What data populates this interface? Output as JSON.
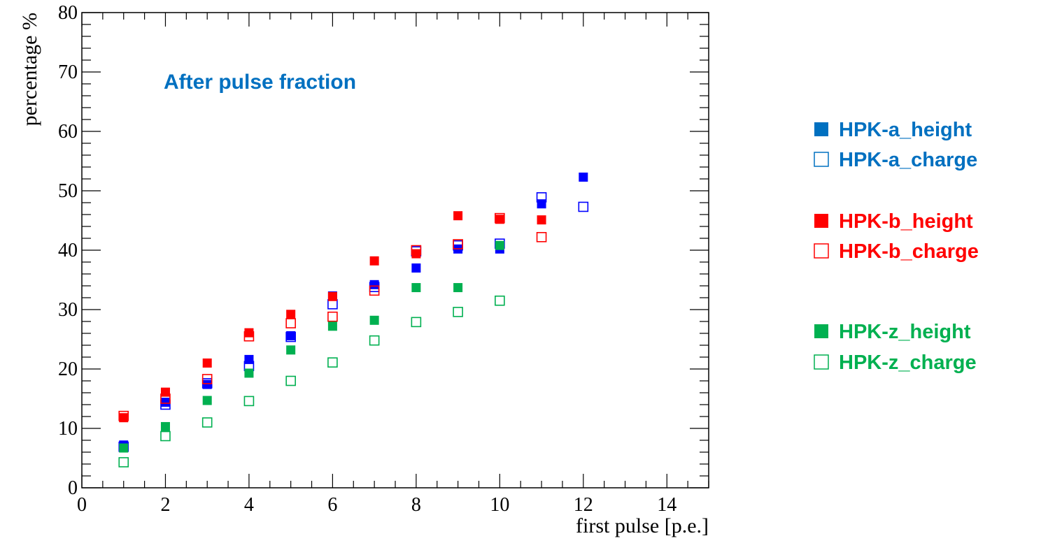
{
  "chart_data": {
    "type": "scatter",
    "title": "After pulse fraction",
    "xlabel": "first pulse [p.e.]",
    "ylabel": "percentage %",
    "xlim": [
      0,
      15
    ],
    "ylim": [
      0,
      80
    ],
    "xticks": [
      0,
      2,
      4,
      6,
      8,
      10,
      12,
      14
    ],
    "yticks": [
      0,
      10,
      20,
      30,
      40,
      50,
      60,
      70,
      80
    ],
    "grid": false,
    "legend_position": "right",
    "colors": {
      "a": "#0000ff",
      "b": "#ff0000",
      "z": "#00b050",
      "title": "#0070c0",
      "legend_a": "#0070c0"
    },
    "series": [
      {
        "name": "HPK-a_height",
        "marker": "filled-square",
        "color": "#0000ff",
        "x": [
          1,
          2,
          3,
          4,
          5,
          6,
          7,
          8,
          9,
          10,
          11,
          12
        ],
        "y": [
          7.2,
          14.4,
          17.4,
          21.6,
          25.6,
          32.3,
          34.2,
          37.0,
          40.2,
          40.2,
          47.8,
          52.3
        ]
      },
      {
        "name": "HPK-a_charge",
        "marker": "open-square",
        "color": "#0000ff",
        "x": [
          1,
          2,
          3,
          4,
          5,
          6,
          7,
          8,
          9,
          10,
          11,
          12
        ],
        "y": [
          6.9,
          14.0,
          17.6,
          20.5,
          25.4,
          30.9,
          33.8,
          39.8,
          40.8,
          41.1,
          48.9,
          47.3
        ]
      },
      {
        "name": "HPK-b_height",
        "marker": "filled-square",
        "color": "#ff0000",
        "x": [
          1,
          2,
          3,
          4,
          5,
          6,
          7,
          8,
          9,
          10,
          11
        ],
        "y": [
          11.8,
          16.1,
          21.0,
          26.1,
          29.2,
          32.2,
          38.2,
          39.4,
          45.8,
          45.2,
          45.1
        ]
      },
      {
        "name": "HPK-b_charge",
        "marker": "open-square",
        "color": "#ff0000",
        "x": [
          1,
          2,
          3,
          4,
          5,
          6,
          7,
          8,
          9,
          10,
          11
        ],
        "y": [
          12.1,
          15.0,
          18.3,
          25.5,
          27.7,
          28.8,
          33.2,
          40.0,
          41.0,
          45.4,
          42.2
        ]
      },
      {
        "name": "HPK-z_height",
        "marker": "filled-square",
        "color": "#00b050",
        "x": [
          1,
          2,
          3,
          4,
          5,
          6,
          7,
          8,
          9,
          10
        ],
        "y": [
          6.7,
          10.3,
          14.7,
          19.3,
          23.2,
          27.2,
          28.2,
          33.7,
          33.7,
          40.8
        ]
      },
      {
        "name": "HPK-z_charge",
        "marker": "open-square",
        "color": "#00b050",
        "x": [
          1,
          2,
          3,
          4,
          5,
          6,
          7,
          8,
          9,
          10
        ],
        "y": [
          4.3,
          8.7,
          11.0,
          14.6,
          18.0,
          21.1,
          24.8,
          27.9,
          29.6,
          31.5
        ]
      }
    ]
  },
  "legend": [
    {
      "symbol": "■",
      "label": "HPK-a_height",
      "color": "#0070c0"
    },
    {
      "symbol": "□",
      "label": "HPK-a_charge",
      "color": "#0070c0"
    },
    {
      "symbol": "■",
      "label": "HPK-b_height",
      "color": "#ff0000"
    },
    {
      "symbol": "□",
      "label": "HPK-b_charge",
      "color": "#ff0000"
    },
    {
      "symbol": "■",
      "label": "HPK-z_height",
      "color": "#00b050"
    },
    {
      "symbol": "□",
      "label": "HPK-z_charge",
      "color": "#00b050"
    }
  ]
}
